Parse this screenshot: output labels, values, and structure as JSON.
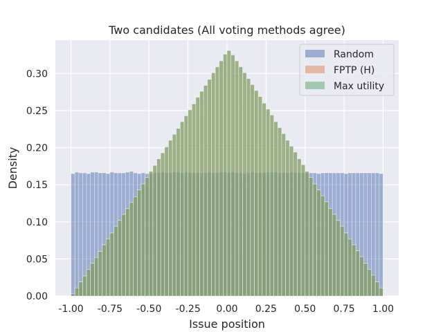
{
  "chart_data": {
    "type": "histogram",
    "title": "Two candidates (All voting methods agree)",
    "xlabel": "Issue position",
    "ylabel": "Density",
    "xlim": [
      -1.1,
      1.1
    ],
    "ylim": [
      0,
      0.345
    ],
    "xticks": [
      "-1.00",
      "-0.75",
      "-0.50",
      "-0.25",
      "0.00",
      "0.25",
      "0.50",
      "0.75",
      "1.00"
    ],
    "xtick_values": [
      -1.0,
      -0.75,
      -0.5,
      -0.25,
      0.0,
      0.25,
      0.5,
      0.75,
      1.0
    ],
    "yticks": [
      "0.00",
      "0.05",
      "0.10",
      "0.15",
      "0.20",
      "0.25",
      "0.30"
    ],
    "ytick_values": [
      0.0,
      0.05,
      0.1,
      0.15,
      0.2,
      0.25,
      0.3
    ],
    "grid": true,
    "legend_position": "top-right",
    "bins": {
      "start": -1.0,
      "end": 1.0,
      "count": 80
    },
    "series": [
      {
        "name": "Random",
        "color": "#4c72b0",
        "alpha": 0.5,
        "values": [
          0.165,
          0.167,
          0.166,
          0.166,
          0.165,
          0.167,
          0.167,
          0.166,
          0.166,
          0.165,
          0.167,
          0.166,
          0.166,
          0.166,
          0.167,
          0.168,
          0.166,
          0.165,
          0.166,
          0.165,
          0.165,
          0.166,
          0.166,
          0.167,
          0.166,
          0.166,
          0.167,
          0.167,
          0.166,
          0.167,
          0.166,
          0.166,
          0.166,
          0.166,
          0.166,
          0.167,
          0.166,
          0.166,
          0.167,
          0.167,
          0.166,
          0.167,
          0.166,
          0.166,
          0.165,
          0.166,
          0.167,
          0.166,
          0.166,
          0.166,
          0.167,
          0.167,
          0.167,
          0.166,
          0.166,
          0.166,
          0.167,
          0.166,
          0.166,
          0.166,
          0.166,
          0.166,
          0.166,
          0.165,
          0.166,
          0.166,
          0.166,
          0.166,
          0.166,
          0.166,
          0.165,
          0.166,
          0.166,
          0.166,
          0.166,
          0.166,
          0.166,
          0.166,
          0.166,
          0.165
        ]
      },
      {
        "name": "FPTP (H)",
        "color": "#dd8452",
        "alpha": 0.5,
        "values": [
          0.003,
          0.011,
          0.019,
          0.027,
          0.036,
          0.044,
          0.052,
          0.06,
          0.069,
          0.077,
          0.085,
          0.094,
          0.102,
          0.11,
          0.118,
          0.126,
          0.134,
          0.143,
          0.151,
          0.16,
          0.168,
          0.176,
          0.185,
          0.193,
          0.201,
          0.21,
          0.218,
          0.226,
          0.235,
          0.243,
          0.251,
          0.259,
          0.268,
          0.276,
          0.284,
          0.292,
          0.301,
          0.309,
          0.317,
          0.326,
          0.331,
          0.325,
          0.317,
          0.309,
          0.301,
          0.293,
          0.285,
          0.277,
          0.269,
          0.26,
          0.252,
          0.244,
          0.235,
          0.227,
          0.219,
          0.21,
          0.202,
          0.194,
          0.185,
          0.177,
          0.168,
          0.16,
          0.151,
          0.143,
          0.135,
          0.127,
          0.118,
          0.11,
          0.102,
          0.094,
          0.085,
          0.077,
          0.069,
          0.061,
          0.053,
          0.044,
          0.036,
          0.028,
          0.019,
          0.011
        ]
      },
      {
        "name": "Max utility",
        "color": "#55a868",
        "alpha": 0.5,
        "values": [
          0.003,
          0.011,
          0.019,
          0.027,
          0.036,
          0.044,
          0.052,
          0.06,
          0.069,
          0.077,
          0.085,
          0.094,
          0.102,
          0.11,
          0.118,
          0.126,
          0.134,
          0.143,
          0.151,
          0.16,
          0.168,
          0.176,
          0.185,
          0.193,
          0.201,
          0.21,
          0.218,
          0.226,
          0.235,
          0.243,
          0.251,
          0.259,
          0.268,
          0.276,
          0.284,
          0.292,
          0.301,
          0.309,
          0.317,
          0.326,
          0.331,
          0.325,
          0.317,
          0.309,
          0.301,
          0.293,
          0.285,
          0.277,
          0.269,
          0.26,
          0.252,
          0.244,
          0.235,
          0.227,
          0.219,
          0.21,
          0.202,
          0.194,
          0.185,
          0.177,
          0.168,
          0.16,
          0.151,
          0.143,
          0.135,
          0.127,
          0.118,
          0.11,
          0.102,
          0.094,
          0.085,
          0.077,
          0.069,
          0.061,
          0.053,
          0.044,
          0.036,
          0.028,
          0.019,
          0.011
        ]
      }
    ]
  }
}
